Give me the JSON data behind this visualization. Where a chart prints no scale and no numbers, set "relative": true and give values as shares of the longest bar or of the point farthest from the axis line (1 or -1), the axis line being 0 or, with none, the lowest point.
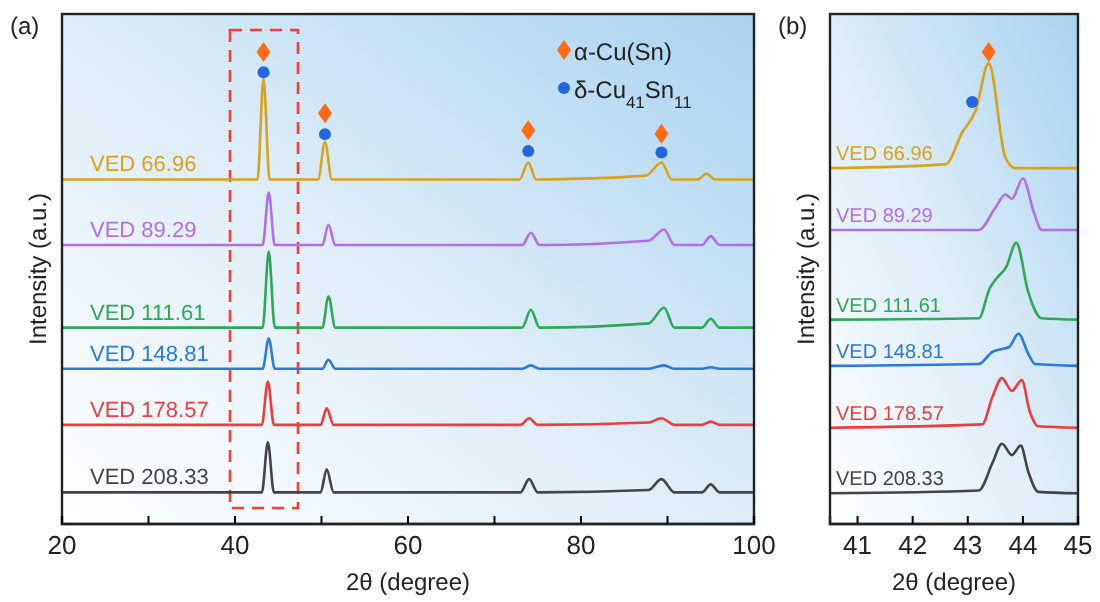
{
  "chart_data": [
    {
      "type": "line",
      "title": "(a)",
      "xlabel": "2θ (degree)",
      "ylabel": "Intensity (a.u.)",
      "relative": true,
      "xlim": [
        20,
        100
      ],
      "xticks": [
        20,
        {
          "value": 30,
          "label": null
        },
        40,
        {
          "value": 50,
          "label": null
        },
        60,
        {
          "value": 70,
          "label": null
        },
        80,
        {
          "value": 90,
          "label": null
        },
        100
      ],
      "tick_labels": "x",
      "marker": "none",
      "legend": "top right",
      "grid": false,
      "series": [
        {
          "name": "VED 66.96",
          "color": "#d9a21b",
          "x": [
            20,
            42.6,
            43.3,
            44.0,
            49.6,
            50.4,
            51.2,
            72.9,
            73.9,
            74.8,
            87.5,
            89.3,
            90.5,
            93.5,
            94.5,
            95.5,
            100
          ],
          "values": [
            0.73,
            0.73,
            0.943,
            0.73,
            0.73,
            0.809,
            0.73,
            0.73,
            0.766,
            0.73,
            0.738,
            0.766,
            0.73,
            0.73,
            0.742,
            0.73,
            0.73
          ]
        },
        {
          "name": "VED 89.29",
          "color": "#b36ee6",
          "x": [
            20,
            43.2,
            43.9,
            44.6,
            50.1,
            50.8,
            51.6,
            73.2,
            74.2,
            75.2,
            87.8,
            89.6,
            90.8,
            94,
            95,
            96,
            100
          ],
          "values": [
            0.591,
            0.591,
            0.702,
            0.591,
            0.591,
            0.634,
            0.591,
            0.591,
            0.617,
            0.591,
            0.6,
            0.624,
            0.591,
            0.591,
            0.61,
            0.591,
            0.591
          ]
        },
        {
          "name": "VED 111.61",
          "color": "#2ea858",
          "x": [
            20,
            43.2,
            43.9,
            44.6,
            50.1,
            50.8,
            51.6,
            73.2,
            74.2,
            75.2,
            87.8,
            89.6,
            90.8,
            94,
            95,
            96,
            100
          ],
          "values": [
            0.416,
            0.416,
            0.577,
            0.416,
            0.416,
            0.482,
            0.416,
            0.416,
            0.454,
            0.416,
            0.425,
            0.458,
            0.416,
            0.416,
            0.435,
            0.416,
            0.416
          ]
        },
        {
          "name": "VED 148.81",
          "color": "#2a78e0",
          "x": [
            20,
            43.2,
            43.9,
            44.6,
            50.1,
            50.8,
            51.6,
            73.2,
            74.2,
            75.2,
            87.8,
            89.6,
            90.8,
            94,
            95,
            96,
            100
          ],
          "values": [
            0.329,
            0.329,
            0.393,
            0.329,
            0.329,
            0.348,
            0.329,
            0.329,
            0.336,
            0.329,
            0.329,
            0.336,
            0.329,
            0.329,
            0.332,
            0.329,
            0.329
          ]
        },
        {
          "name": "VED 178.57",
          "color": "#ef3b3b",
          "x": [
            20,
            43.1,
            43.8,
            44.5,
            49.9,
            50.6,
            51.4,
            73,
            74,
            75,
            87.8,
            89.3,
            90.8,
            94,
            95,
            96,
            100
          ],
          "values": [
            0.21,
            0.21,
            0.302,
            0.21,
            0.21,
            0.245,
            0.21,
            0.21,
            0.224,
            0.21,
            0.215,
            0.224,
            0.21,
            0.21,
            0.217,
            0.21,
            0.21
          ]
        },
        {
          "name": "VED 208.33",
          "color": "#444444",
          "x": [
            20,
            43.1,
            43.8,
            44.5,
            49.9,
            50.6,
            51.4,
            73,
            74,
            75,
            87.8,
            89.3,
            90.8,
            94,
            95,
            96,
            100
          ],
          "values": [
            0.067,
            0.067,
            0.173,
            0.067,
            0.067,
            0.116,
            0.067,
            0.067,
            0.095,
            0.067,
            0.072,
            0.095,
            0.067,
            0.067,
            0.084,
            0.067,
            0.067
          ]
        },
        {
          "name": "α-Cu(Sn)",
          "type": "scatter",
          "marker": "diamond",
          "color": "#ff6a13",
          "x": [
            43.3,
            50.4,
            73.9,
            89.3
          ],
          "values": [
            1.0,
            0.87,
            0.834,
            0.827
          ]
        },
        {
          "name": "δ-Cu$_{41}$Sn$_{11}$",
          "type": "scatter",
          "marker": "circle",
          "color": "#2266dd",
          "x": [
            43.3,
            50.4,
            73.9,
            89.3
          ],
          "values": [
            0.957,
            0.826,
            0.79,
            0.787
          ]
        }
      ]
    },
    {
      "type": "line",
      "title": "(b)",
      "xlabel": "2θ (degree)",
      "ylabel": "Intensity (a.u.)",
      "relative": true,
      "xlim": [
        40.5,
        45
      ],
      "xticks": [
        41,
        42,
        43,
        44,
        45
      ],
      "tick_labels": "x",
      "marker": "none",
      "grid": false,
      "series": [
        {
          "name": "VED 66.96",
          "color": "#d9a21b",
          "x": [
            40.5,
            42.6,
            42.9,
            43.14,
            43.38,
            43.68,
            43.86,
            45
          ],
          "values": [
            0.754,
            0.762,
            0.83,
            0.875,
            0.976,
            0.777,
            0.754,
            0.754
          ]
        },
        {
          "name": "VED 89.29",
          "color": "#b36ee6",
          "x": [
            40.5,
            43.2,
            43.5,
            43.68,
            43.8,
            44.0,
            44.2,
            44.34,
            45
          ],
          "values": [
            0.623,
            0.623,
            0.67,
            0.698,
            0.689,
            0.732,
            0.66,
            0.623,
            0.623
          ]
        },
        {
          "name": "VED 111.61",
          "color": "#2ea858",
          "x": [
            40.5,
            43.2,
            43.4,
            43.52,
            43.7,
            43.88,
            44.1,
            44.34,
            45
          ],
          "values": [
            0.433,
            0.436,
            0.5,
            0.52,
            0.545,
            0.596,
            0.49,
            0.436,
            0.433
          ]
        },
        {
          "name": "VED 148.81",
          "color": "#2a78e0",
          "x": [
            40.5,
            43.2,
            43.45,
            43.6,
            43.75,
            43.92,
            44.1,
            44.22,
            45
          ],
          "values": [
            0.335,
            0.339,
            0.365,
            0.37,
            0.375,
            0.403,
            0.36,
            0.339,
            0.335
          ]
        },
        {
          "name": "VED 178.57",
          "color": "#ef3b3b",
          "x": [
            40.5,
            43.26,
            43.45,
            43.62,
            43.8,
            43.98,
            44.12,
            44.28,
            45
          ],
          "values": [
            0.204,
            0.211,
            0.27,
            0.309,
            0.282,
            0.305,
            0.24,
            0.207,
            0.204
          ]
        },
        {
          "name": "VED 208.33",
          "color": "#444444",
          "x": [
            40.5,
            43.2,
            43.45,
            43.62,
            43.8,
            43.96,
            44.1,
            44.28,
            45
          ],
          "values": [
            0.065,
            0.071,
            0.13,
            0.17,
            0.146,
            0.166,
            0.11,
            0.068,
            0.065
          ]
        },
        {
          "type": "scatter",
          "marker": "diamond",
          "color": "#ff6a13",
          "x": [
            43.38
          ],
          "values": [
            1.0
          ]
        },
        {
          "type": "scatter",
          "marker": "circle",
          "color": "#2266dd",
          "x": [
            43.08
          ],
          "values": [
            0.894
          ]
        }
      ]
    }
  ]
}
